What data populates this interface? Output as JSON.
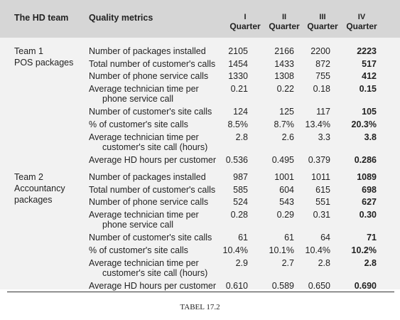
{
  "header": {
    "team_col": "The HD team",
    "metric_col": "Quality metrics",
    "quarters": [
      {
        "roman": "I",
        "label": "Quarter"
      },
      {
        "roman": "II",
        "label": "Quarter"
      },
      {
        "roman": "III",
        "label": "Quarter"
      },
      {
        "roman": "IV",
        "label": "Quarter"
      }
    ]
  },
  "teams": [
    {
      "name_line1": "Team 1",
      "name_line2": "POS packages",
      "name_line3": "",
      "rows": [
        {
          "metric": [
            "Number of packages installed"
          ],
          "values": [
            "2105",
            "2166",
            "2200",
            "2223"
          ]
        },
        {
          "metric": [
            "Total number of customer's calls"
          ],
          "values": [
            "1454",
            "1433",
            "872",
            "517"
          ]
        },
        {
          "metric": [
            "Number of phone service calls"
          ],
          "values": [
            "1330",
            "1308",
            "755",
            "412"
          ]
        },
        {
          "metric": [
            "Average technician time per",
            "phone service call"
          ],
          "values": [
            "0.21",
            "0.22",
            "0.18",
            "0.15"
          ]
        },
        {
          "metric": [
            "Number of customer's site calls"
          ],
          "values": [
            "124",
            "125",
            "117",
            "105"
          ]
        },
        {
          "metric": [
            "% of customer's site calls"
          ],
          "values": [
            "8.5%",
            "8.7%",
            "13.4%",
            "20.3%"
          ]
        },
        {
          "metric": [
            "Average technician time per",
            "customer's site call (hours)"
          ],
          "values": [
            "2.8",
            "2.6",
            "3.3",
            "3.8"
          ]
        },
        {
          "metric": [
            "Average HD hours per customer"
          ],
          "values": [
            "0.536",
            "0.495",
            "0.379",
            "0.286"
          ]
        }
      ]
    },
    {
      "name_line1": "Team 2",
      "name_line2": "Accountancy",
      "name_line3": "packages",
      "rows": [
        {
          "metric": [
            "Number of packages installed"
          ],
          "values": [
            "987",
            "1001",
            "1011",
            "1089"
          ]
        },
        {
          "metric": [
            "Total number of customer's calls"
          ],
          "values": [
            "585",
            "604",
            "615",
            "698"
          ]
        },
        {
          "metric": [
            "Number of phone service calls"
          ],
          "values": [
            "524",
            "543",
            "551",
            "627"
          ]
        },
        {
          "metric": [
            "Average technician time per",
            "phone service call"
          ],
          "values": [
            "0.28",
            "0.29",
            "0.31",
            "0.30"
          ]
        },
        {
          "metric": [
            "Number of customer's site calls"
          ],
          "values": [
            "61",
            "61",
            "64",
            "71"
          ]
        },
        {
          "metric": [
            "% of customer's site calls"
          ],
          "values": [
            "10.4%",
            "10.1%",
            "10.4%",
            "10.2%"
          ]
        },
        {
          "metric": [
            "Average technician time per",
            "customer's site call (hours)"
          ],
          "values": [
            "2.9",
            "2.7",
            "2.8",
            "2.8"
          ]
        },
        {
          "metric": [
            "Average HD hours per customer"
          ],
          "values": [
            "0.610",
            "0.589",
            "0.650",
            "0.690"
          ]
        }
      ]
    }
  ],
  "caption": "TABEL 17.2"
}
